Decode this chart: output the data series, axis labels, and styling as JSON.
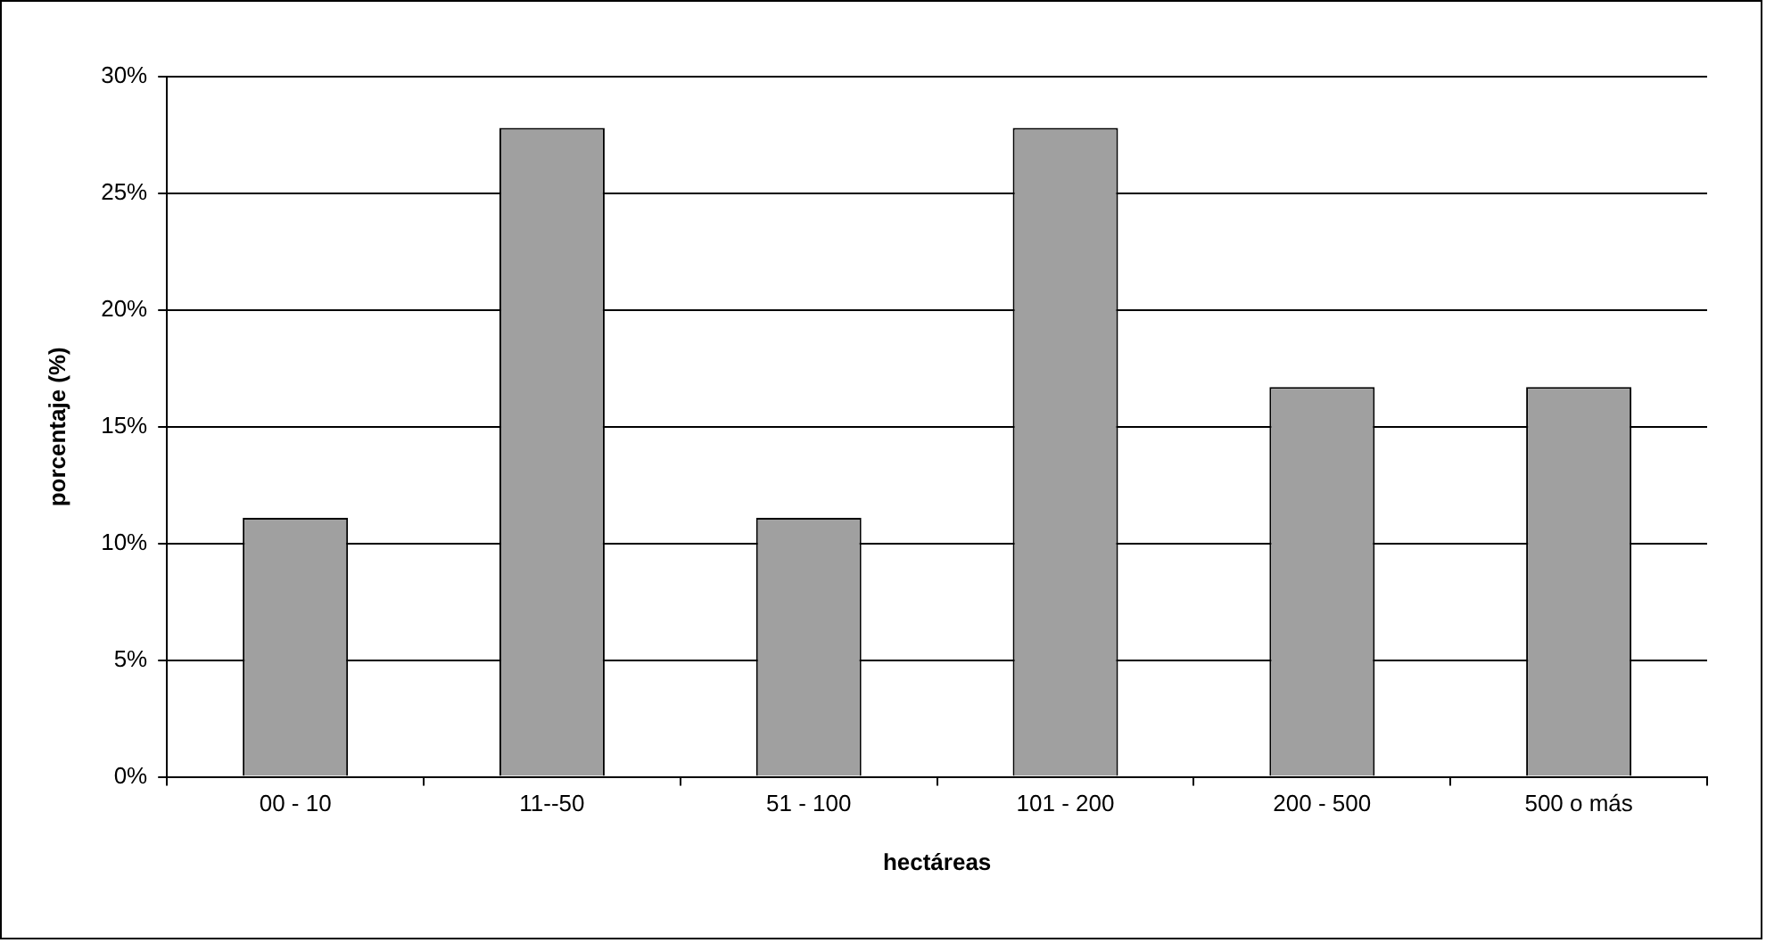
{
  "chart_data": {
    "type": "bar",
    "xlabel": "hectáreas",
    "ylabel": "porcentaje (%)",
    "categories": [
      "00 - 10",
      "11--50",
      "51 - 100",
      "101 - 200",
      "200 - 500",
      "500 o más"
    ],
    "values": [
      11.1,
      27.8,
      11.1,
      27.8,
      16.7,
      16.7
    ],
    "color": "#a0a0a0",
    "ylim": [
      0,
      30
    ],
    "yticks": [
      {
        "value": 0,
        "label": "0%"
      },
      {
        "value": 5,
        "label": "5%"
      },
      {
        "value": 10,
        "label": "10%"
      },
      {
        "value": 15,
        "label": "15%"
      },
      {
        "value": 20,
        "label": "20%"
      },
      {
        "value": 25,
        "label": "25%"
      },
      {
        "value": 30,
        "label": "30%"
      }
    ],
    "grid": "y",
    "legend": false
  }
}
